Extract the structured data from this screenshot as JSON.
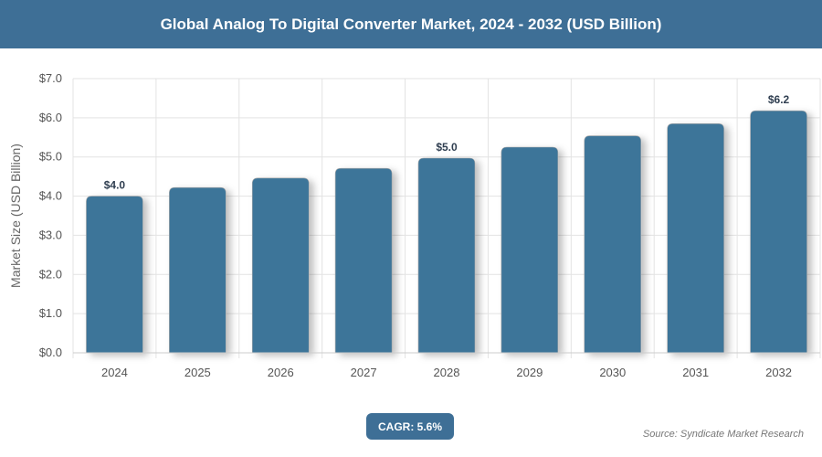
{
  "header": {
    "title": "Global Analog To Digital Converter Market, 2024 - 2032 (USD Billion)"
  },
  "chart_data": {
    "type": "bar",
    "title": "Global Analog To Digital Converter Market, 2024 - 2032 (USD Billion)",
    "xlabel": "",
    "ylabel": "Market Size (USD Billion)",
    "categories": [
      "2024",
      "2025",
      "2026",
      "2027",
      "2028",
      "2029",
      "2030",
      "2031",
      "2032"
    ],
    "values": [
      4.0,
      4.22,
      4.46,
      4.71,
      4.97,
      5.25,
      5.54,
      5.85,
      6.18
    ],
    "data_labels": {
      "0": "$4.0",
      "4": "$5.0",
      "8": "$6.2"
    },
    "ylim": [
      0,
      7
    ],
    "yticks": [
      "$0.0",
      "$1.0",
      "$2.0",
      "$3.0",
      "$4.0",
      "$5.0",
      "$6.0",
      "$7.0"
    ],
    "grid": true,
    "bar_color": "#3d7499"
  },
  "footer": {
    "cagr": "CAGR: 5.6%",
    "source": "Source: Syndicate Market Research"
  }
}
